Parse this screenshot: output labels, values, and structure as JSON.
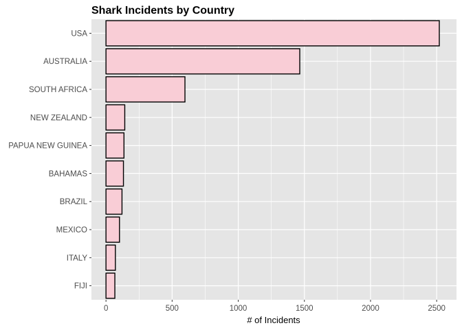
{
  "chart_data": {
    "type": "bar",
    "orientation": "horizontal",
    "title": "Shark Incidents by Country",
    "xlabel": "# of Incidents",
    "ylabel": "",
    "categories": [
      "USA",
      "AUSTRALIA",
      "SOUTH AFRICA",
      "NEW ZEALAND",
      "PAPUA NEW GUINEA",
      "BAHAMAS",
      "BRAZIL",
      "MEXICO",
      "ITALY",
      "FIJI"
    ],
    "values": [
      2520,
      1465,
      597,
      142,
      136,
      132,
      121,
      102,
      71,
      67
    ],
    "xlim": [
      -110,
      2650
    ],
    "xticks": [
      0,
      500,
      1000,
      1500,
      2000,
      2500
    ],
    "grid": true,
    "colors": {
      "bar_fill": "#f9cdd6",
      "bar_stroke": "#000000",
      "panel_bg": "#e5e5e5",
      "grid": "#ffffff"
    }
  }
}
